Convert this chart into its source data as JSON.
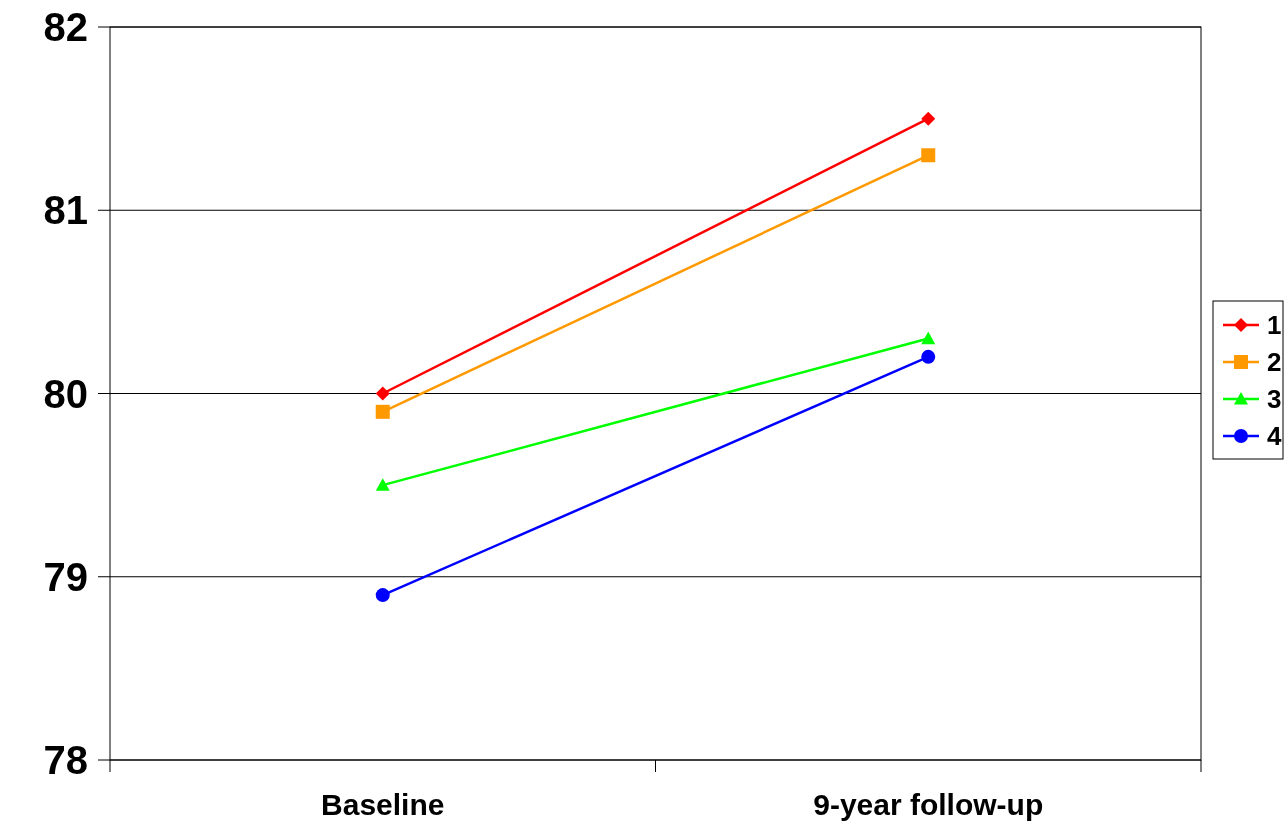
{
  "chart_data": {
    "type": "line",
    "categories": [
      "Baseline",
      "9-year follow-up"
    ],
    "series": [
      {
        "name": "1",
        "color": "#ff0000",
        "values": [
          80.0,
          81.5
        ],
        "marker": "diamond"
      },
      {
        "name": "2",
        "color": "#ff9900",
        "values": [
          79.9,
          81.3
        ],
        "marker": "square"
      },
      {
        "name": "3",
        "color": "#00ff00",
        "values": [
          79.5,
          80.3
        ],
        "marker": "triangle"
      },
      {
        "name": "4",
        "color": "#0000ff",
        "values": [
          78.9,
          80.2
        ],
        "marker": "circle"
      }
    ],
    "ylim": [
      78,
      82
    ],
    "yticks": [
      78,
      79,
      80,
      81,
      82
    ],
    "grid": "y",
    "legend": "right"
  }
}
